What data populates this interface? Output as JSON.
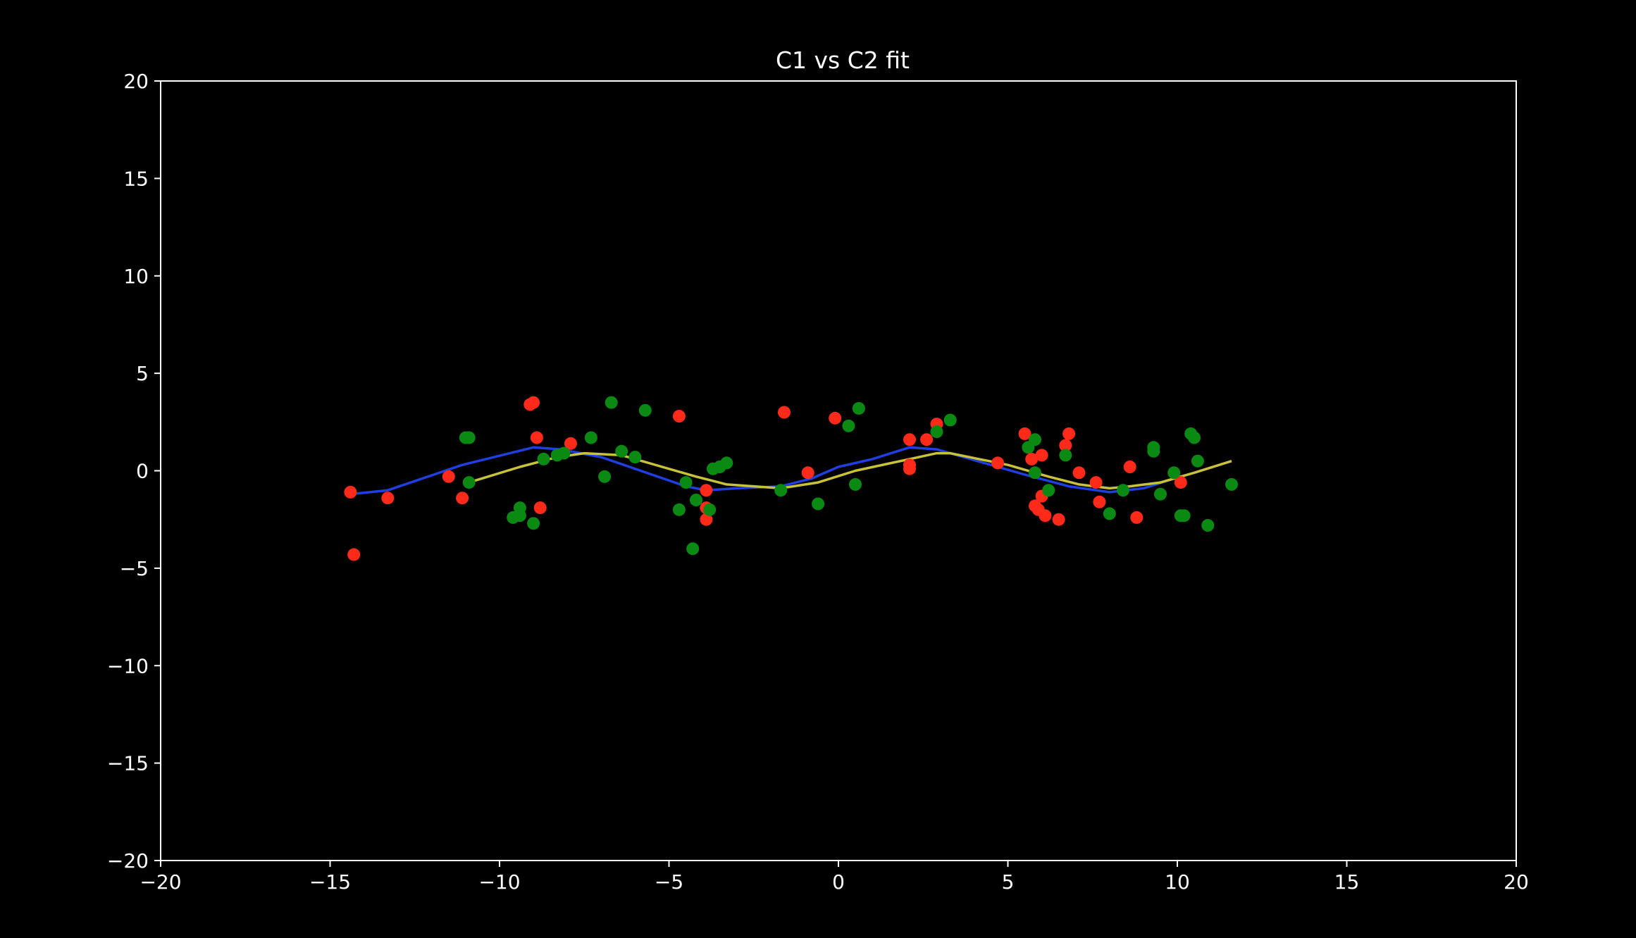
{
  "chart_data": {
    "type": "scatter",
    "title": "C1 vs C2 fit",
    "xlabel": "",
    "ylabel": "",
    "xlim": [
      -20,
      20
    ],
    "ylim": [
      -20,
      20
    ],
    "x_ticks": [
      -20,
      -15,
      -10,
      -5,
      0,
      5,
      10,
      15,
      20
    ],
    "y_ticks": [
      20,
      15,
      10,
      5,
      0,
      -5,
      -10,
      -15,
      -20
    ],
    "x_tick_labels": [
      "−20",
      "−15",
      "−10",
      "−5",
      "0",
      "5",
      "10",
      "15",
      "20"
    ],
    "y_tick_labels": [
      "20",
      "15",
      "10",
      "5",
      "0",
      "−5",
      "−10",
      "−15",
      "−20"
    ],
    "grid": false,
    "legend": "none",
    "colors": {
      "background": "#000000",
      "axes": "#ffffff",
      "red_points": "#ff2a1a",
      "green_points": "#0a8a12",
      "blue_line": "#1f3fe0",
      "yellow_line": "#c8c23a"
    },
    "series": [
      {
        "kind": "points",
        "color": "#ff2a1a",
        "points": [
          [
            -14.4,
            -1.1
          ],
          [
            -14.3,
            -4.3
          ],
          [
            -13.3,
            -1.4
          ],
          [
            -11.5,
            -0.3
          ],
          [
            -11.1,
            -1.4
          ],
          [
            -9.1,
            3.4
          ],
          [
            -9.0,
            3.5
          ],
          [
            -8.9,
            1.7
          ],
          [
            -8.8,
            -1.9
          ],
          [
            -7.9,
            1.4
          ],
          [
            -4.7,
            2.8
          ],
          [
            -3.9,
            -1.0
          ],
          [
            -3.9,
            -1.9
          ],
          [
            -3.9,
            -2.5
          ],
          [
            -1.6,
            3.0
          ],
          [
            -0.9,
            -0.1
          ],
          [
            -0.1,
            2.7
          ],
          [
            2.1,
            1.6
          ],
          [
            2.1,
            0.3
          ],
          [
            2.1,
            0.1
          ],
          [
            2.6,
            1.6
          ],
          [
            2.9,
            2.4
          ],
          [
            4.7,
            0.4
          ],
          [
            5.5,
            1.9
          ],
          [
            5.7,
            0.6
          ],
          [
            5.8,
            -1.8
          ],
          [
            5.9,
            -2.0
          ],
          [
            6.0,
            0.8
          ],
          [
            6.0,
            -1.3
          ],
          [
            6.1,
            -2.3
          ],
          [
            6.5,
            -2.5
          ],
          [
            6.8,
            1.9
          ],
          [
            6.7,
            1.3
          ],
          [
            7.1,
            -0.1
          ],
          [
            7.6,
            -0.6
          ],
          [
            7.7,
            -1.6
          ],
          [
            8.6,
            0.2
          ],
          [
            8.8,
            -2.4
          ],
          [
            10.1,
            -0.6
          ]
        ]
      },
      {
        "kind": "points",
        "color": "#0a8a12",
        "points": [
          [
            -11.0,
            1.7
          ],
          [
            -10.9,
            1.7
          ],
          [
            -10.9,
            -0.6
          ],
          [
            -9.6,
            -2.4
          ],
          [
            -9.4,
            -1.9
          ],
          [
            -9.4,
            -2.3
          ],
          [
            -9.0,
            -2.7
          ],
          [
            -8.7,
            0.6
          ],
          [
            -8.3,
            0.8
          ],
          [
            -8.1,
            0.9
          ],
          [
            -7.3,
            1.7
          ],
          [
            -6.9,
            -0.3
          ],
          [
            -6.7,
            3.5
          ],
          [
            -6.4,
            1.0
          ],
          [
            -6.0,
            0.7
          ],
          [
            -5.7,
            3.1
          ],
          [
            -4.7,
            -2.0
          ],
          [
            -4.5,
            -0.6
          ],
          [
            -4.3,
            -4.0
          ],
          [
            -4.2,
            -1.5
          ],
          [
            -3.8,
            -2.0
          ],
          [
            -3.7,
            0.1
          ],
          [
            -3.5,
            0.2
          ],
          [
            -3.3,
            0.4
          ],
          [
            -1.7,
            -1.0
          ],
          [
            -0.6,
            -1.7
          ],
          [
            0.3,
            2.3
          ],
          [
            0.5,
            -0.7
          ],
          [
            0.6,
            3.2
          ],
          [
            2.9,
            2.0
          ],
          [
            3.3,
            2.6
          ],
          [
            5.6,
            1.2
          ],
          [
            5.8,
            1.6
          ],
          [
            5.8,
            -0.1
          ],
          [
            6.2,
            -1.0
          ],
          [
            6.7,
            0.8
          ],
          [
            8.0,
            -2.2
          ],
          [
            8.4,
            -1.0
          ],
          [
            9.3,
            1.0
          ],
          [
            9.3,
            1.2
          ],
          [
            9.5,
            -1.2
          ],
          [
            9.9,
            -0.1
          ],
          [
            10.1,
            -2.3
          ],
          [
            10.2,
            -2.3
          ],
          [
            10.4,
            1.9
          ],
          [
            10.5,
            1.7
          ],
          [
            10.6,
            0.5
          ],
          [
            10.9,
            -2.8
          ],
          [
            11.6,
            -0.7
          ]
        ]
      },
      {
        "kind": "line",
        "color": "#1f3fe0",
        "points": [
          [
            -14.4,
            -1.2
          ],
          [
            -13.3,
            -1.0
          ],
          [
            -11.1,
            0.3
          ],
          [
            -9.0,
            1.2
          ],
          [
            -8.2,
            1.1
          ],
          [
            -7.0,
            0.7
          ],
          [
            -5.5,
            -0.2
          ],
          [
            -4.5,
            -0.8
          ],
          [
            -3.9,
            -1.0
          ],
          [
            -3.0,
            -0.9
          ],
          [
            -1.7,
            -0.8
          ],
          [
            -0.8,
            -0.4
          ],
          [
            0.0,
            0.2
          ],
          [
            1.0,
            0.6
          ],
          [
            2.1,
            1.2
          ],
          [
            2.9,
            1.1
          ],
          [
            4.3,
            0.4
          ],
          [
            5.5,
            -0.2
          ],
          [
            6.8,
            -0.8
          ],
          [
            8.0,
            -1.1
          ],
          [
            9.0,
            -0.9
          ],
          [
            10.1,
            -0.3
          ]
        ]
      },
      {
        "kind": "line",
        "color": "#c8c23a",
        "points": [
          [
            -10.9,
            -0.6
          ],
          [
            -9.4,
            0.2
          ],
          [
            -8.3,
            0.7
          ],
          [
            -7.5,
            0.9
          ],
          [
            -6.4,
            0.8
          ],
          [
            -5.2,
            0.2
          ],
          [
            -4.2,
            -0.3
          ],
          [
            -3.3,
            -0.7
          ],
          [
            -1.7,
            -0.9
          ],
          [
            -0.6,
            -0.6
          ],
          [
            0.5,
            0.0
          ],
          [
            2.1,
            0.6
          ],
          [
            2.9,
            0.9
          ],
          [
            3.3,
            0.9
          ],
          [
            5.0,
            0.3
          ],
          [
            6.2,
            -0.3
          ],
          [
            7.1,
            -0.7
          ],
          [
            8.0,
            -0.9
          ],
          [
            8.6,
            -0.8
          ],
          [
            9.5,
            -0.6
          ],
          [
            10.5,
            -0.1
          ],
          [
            11.6,
            0.5
          ]
        ]
      }
    ]
  }
}
